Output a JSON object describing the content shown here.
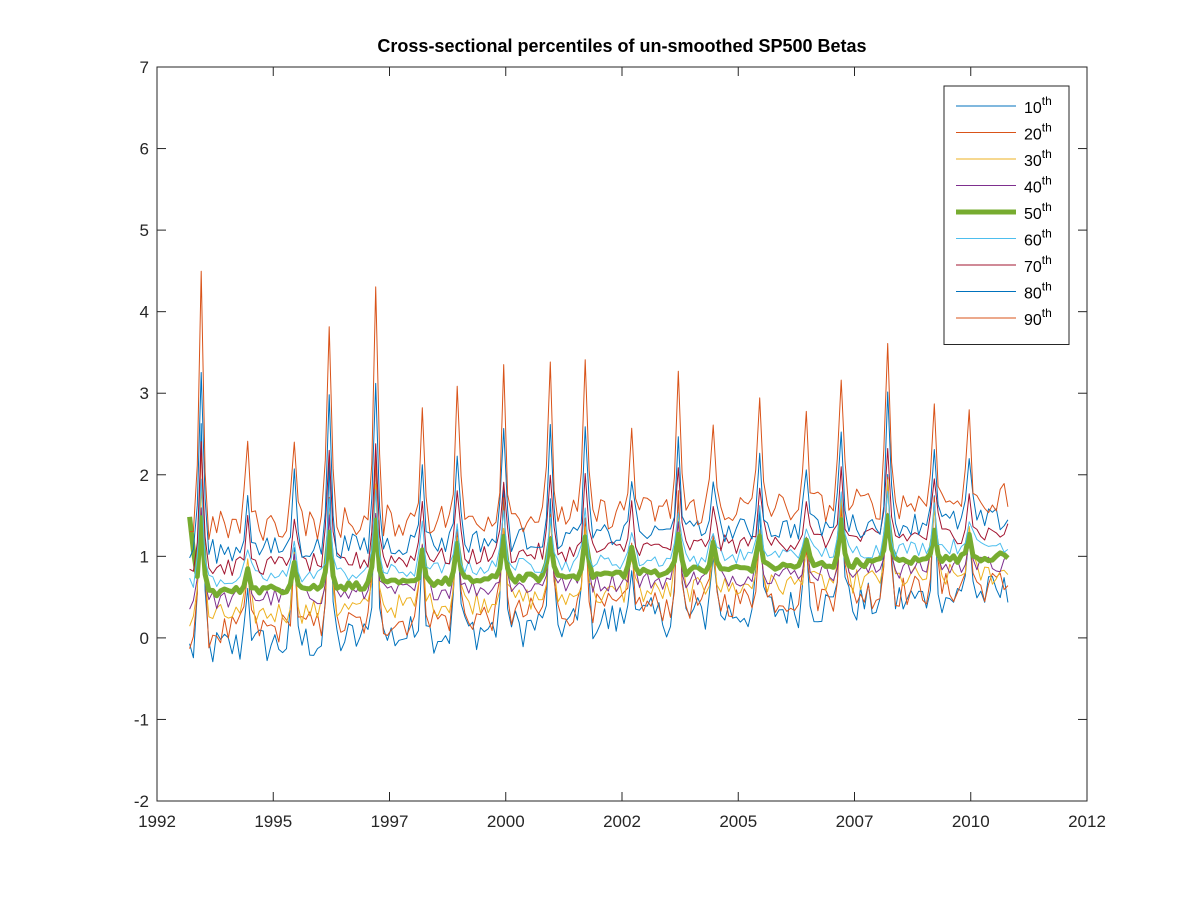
{
  "chart_data": {
    "type": "line",
    "title": "Cross-sectional percentiles of un-smoothed SP500 Betas",
    "xlabel": "",
    "ylabel": "",
    "xlim": [
      1992,
      2012
    ],
    "ylim": [
      -2,
      7
    ],
    "x_ticks": [
      "1992",
      "1995",
      "1997",
      "2000",
      "2002",
      "2005",
      "2007",
      "2010",
      "2012"
    ],
    "y_ticks": [
      "-2",
      "-1",
      "0",
      "1",
      "2",
      "3",
      "4",
      "5",
      "6",
      "7"
    ],
    "grid": false,
    "legend_position": "top-right",
    "x_start": 1992.7,
    "x_end": 2010.3,
    "n_points": 212,
    "median_spike_heights": [
      0.9,
      0.3,
      0.35,
      0.7,
      0.8,
      0.4,
      0.45,
      0.55,
      0.5,
      0.5,
      0.3,
      0.5,
      0.3,
      0.4,
      0.3,
      0.5,
      0.6,
      0.4,
      0.3
    ],
    "series": [
      {
        "name": "10",
        "sup": "th",
        "color": "#0072BD",
        "width": 1,
        "base_start": -0.15,
        "base_end": 0.55,
        "noise": 0.25,
        "spike_mult": 2.8
      },
      {
        "name": "20",
        "sup": "th",
        "color": "#D95319",
        "width": 1,
        "base_start": 0.05,
        "base_end": 0.65,
        "noise": 0.2,
        "spike_mult": 2.4
      },
      {
        "name": "30",
        "sup": "th",
        "color": "#EDB120",
        "width": 1,
        "base_start": 0.25,
        "base_end": 0.8,
        "noise": 0.15,
        "spike_mult": 1.8
      },
      {
        "name": "40",
        "sup": "th",
        "color": "#7E2F8E",
        "width": 1,
        "base_start": 0.45,
        "base_end": 0.9,
        "noise": 0.12,
        "spike_mult": 1.3
      },
      {
        "name": "50",
        "sup": "th",
        "color": "#77AC30",
        "width": 5,
        "base_start": 0.55,
        "base_end": 1.0,
        "noise": 0.05,
        "spike_mult": 1.0
      },
      {
        "name": "60",
        "sup": "th",
        "color": "#4DBEEE",
        "width": 1,
        "base_start": 0.7,
        "base_end": 1.15,
        "noise": 0.1,
        "spike_mult": 1.3
      },
      {
        "name": "70",
        "sup": "th",
        "color": "#A2142F",
        "width": 1,
        "base_start": 0.85,
        "base_end": 1.3,
        "noise": 0.12,
        "spike_mult": 1.8
      },
      {
        "name": "80",
        "sup": "th",
        "color": "#0072BD",
        "width": 1,
        "base_start": 1.05,
        "base_end": 1.45,
        "noise": 0.15,
        "spike_mult": 2.5
      },
      {
        "name": "90",
        "sup": "th",
        "color": "#D95319",
        "width": 1,
        "base_start": 1.35,
        "base_end": 1.7,
        "noise": 0.2,
        "spike_mult": 3.4
      }
    ]
  }
}
